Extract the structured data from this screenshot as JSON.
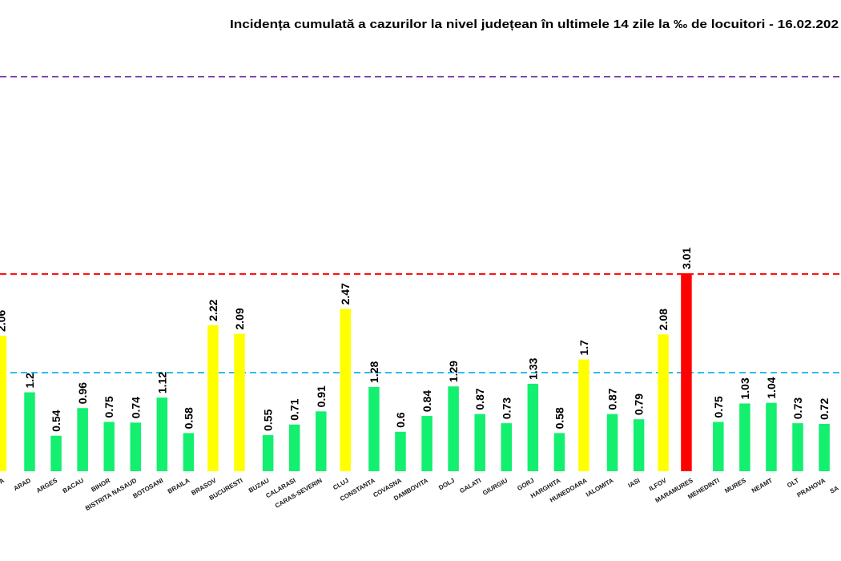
{
  "chart_data": {
    "type": "bar",
    "title": "Incidența cumulată a cazurilor la nivel județean în ultimele 14 zile la ‰ de locuitori - 16.02.202",
    "categories": [
      "A",
      "ARAD",
      "ARGES",
      "BACAU",
      "BIHOR",
      "BISTRITA NASAUD",
      "BOTOSANI",
      "BRAILA",
      "BRASOV",
      "BUCURESTI",
      "BUZAU",
      "CALARASI",
      "CARAS-SEVERIN",
      "CLUJ",
      "CONSTANTA",
      "COVASNA",
      "DAMBOVITA",
      "DOLJ",
      "GALATI",
      "GIURGIU",
      "GORJ",
      "HARGHITA",
      "HUNEDOARA",
      "IALOMITA",
      "IASI",
      "ILFOV",
      "MARAMURES",
      "MEHEDINTI",
      "MURES",
      "NEAMT",
      "OLT",
      "PRAHOVA",
      "SA"
    ],
    "values": [
      2.06,
      1.2,
      0.54,
      0.96,
      0.75,
      0.74,
      1.12,
      0.58,
      2.22,
      2.09,
      0.55,
      0.71,
      0.91,
      2.47,
      1.28,
      0.6,
      0.84,
      1.29,
      0.87,
      0.73,
      1.33,
      0.58,
      1.7,
      0.87,
      0.79,
      2.08,
      3.01,
      0.75,
      1.03,
      1.04,
      0.73,
      0.72,
      null
    ],
    "reference_lines": [
      {
        "value": 1.5,
        "color": "#00B0F0"
      },
      {
        "value": 3,
        "color": "#FF0000"
      },
      {
        "value": 6,
        "color": "#7030A0"
      }
    ],
    "bar_colors": {
      "low": "#13EF6E",
      "medium": "#FFFF00",
      "high": "#FF0000"
    },
    "grid": false,
    "legend": "none"
  }
}
